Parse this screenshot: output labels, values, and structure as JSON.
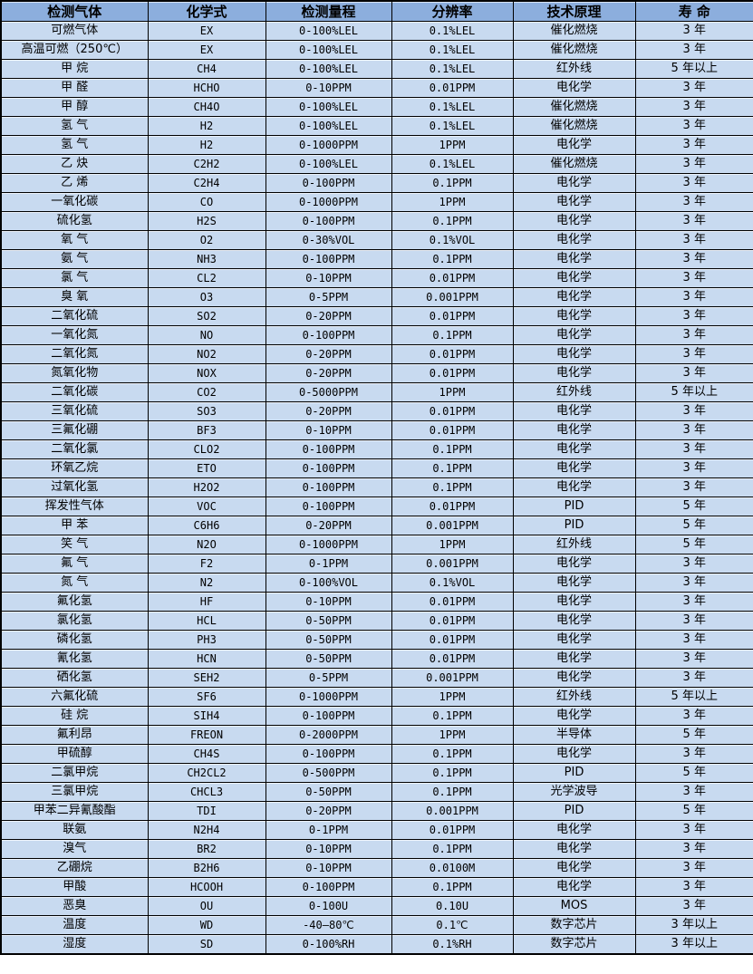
{
  "colors": {
    "header_bg": "#8caedd",
    "row_bg": "#c8daf0",
    "border": "#000000",
    "text": "#000000"
  },
  "chart_data": {
    "type": "table",
    "columns": [
      "检测气体",
      "化学式",
      "检测量程",
      "分辨率",
      "技术原理",
      "寿 命"
    ],
    "rows": [
      [
        "可燃气体",
        "EX",
        "0-100%LEL",
        "0.1%LEL",
        "催化燃烧",
        "3 年"
      ],
      [
        "高温可燃（250℃）",
        "EX",
        "0-100%LEL",
        "0.1%LEL",
        "催化燃烧",
        "3 年"
      ],
      [
        "甲 烷",
        "CH4",
        "0-100%LEL",
        "0.1%LEL",
        "红外线",
        "5 年以上"
      ],
      [
        "甲 醛",
        "HCHO",
        "0-10PPM",
        "0.01PPM",
        "电化学",
        "3 年"
      ],
      [
        "甲 醇",
        "CH4O",
        "0-100%LEL",
        "0.1%LEL",
        "催化燃烧",
        "3 年"
      ],
      [
        "氢 气",
        "H2",
        "0-100%LEL",
        "0.1%LEL",
        "催化燃烧",
        "3 年"
      ],
      [
        "氢 气",
        "H2",
        "0-1000PPM",
        "1PPM",
        "电化学",
        "3 年"
      ],
      [
        "乙 炔",
        "C2H2",
        "0-100%LEL",
        "0.1%LEL",
        "催化燃烧",
        "3 年"
      ],
      [
        "乙 烯",
        "C2H4",
        "0-100PPM",
        "0.1PPM",
        "电化学",
        "3 年"
      ],
      [
        "一氧化碳",
        "CO",
        "0-1000PPM",
        "1PPM",
        "电化学",
        "3 年"
      ],
      [
        "硫化氢",
        "H2S",
        "0-100PPM",
        "0.1PPM",
        "电化学",
        "3 年"
      ],
      [
        "氧 气",
        "O2",
        "0-30%VOL",
        "0.1%VOL",
        "电化学",
        "3 年"
      ],
      [
        "氨 气",
        "NH3",
        "0-100PPM",
        "0.1PPM",
        "电化学",
        "3 年"
      ],
      [
        "氯 气",
        "CL2",
        "0-10PPM",
        "0.01PPM",
        "电化学",
        "3 年"
      ],
      [
        "臭 氧",
        "O3",
        "0-5PPM",
        "0.001PPM",
        "电化学",
        "3 年"
      ],
      [
        "二氧化硫",
        "SO2",
        "0-20PPM",
        "0.01PPM",
        "电化学",
        "3 年"
      ],
      [
        "一氧化氮",
        "NO",
        "0-100PPM",
        "0.1PPM",
        "电化学",
        "3 年"
      ],
      [
        "二氧化氮",
        "NO2",
        "0-20PPM",
        "0.01PPM",
        "电化学",
        "3 年"
      ],
      [
        "氮氧化物",
        "NOX",
        "0-20PPM",
        "0.01PPM",
        "电化学",
        "3 年"
      ],
      [
        "二氧化碳",
        "CO2",
        "0-5000PPM",
        "1PPM",
        "红外线",
        "5 年以上"
      ],
      [
        "三氧化硫",
        "SO3",
        "0-20PPM",
        "0.01PPM",
        "电化学",
        "3 年"
      ],
      [
        "三氟化硼",
        "BF3",
        "0-10PPM",
        "0.01PPM",
        "电化学",
        "3 年"
      ],
      [
        "二氧化氯",
        "CLO2",
        "0-100PPM",
        "0.1PPM",
        "电化学",
        "3 年"
      ],
      [
        "环氧乙烷",
        "ETO",
        "0-100PPM",
        "0.1PPM",
        "电化学",
        "3 年"
      ],
      [
        "过氧化氢",
        "H2O2",
        "0-100PPM",
        "0.1PPM",
        "电化学",
        "3 年"
      ],
      [
        "挥发性气体",
        "VOC",
        "0-100PPM",
        "0.01PPM",
        "PID",
        "5 年"
      ],
      [
        "甲 苯",
        "C6H6",
        "0-20PPM",
        "0.001PPM",
        "PID",
        "5 年"
      ],
      [
        "笑 气",
        "N2O",
        "0-1000PPM",
        "1PPM",
        "红外线",
        "5 年"
      ],
      [
        "氟 气",
        "F2",
        "0-1PPM",
        "0.001PPM",
        "电化学",
        "3 年"
      ],
      [
        "氮 气",
        "N2",
        "0-100%VOL",
        "0.1%VOL",
        "电化学",
        "3 年"
      ],
      [
        "氟化氢",
        "HF",
        "0-10PPM",
        "0.01PPM",
        "电化学",
        "3 年"
      ],
      [
        "氯化氢",
        "HCL",
        "0-50PPM",
        "0.01PPM",
        "电化学",
        "3 年"
      ],
      [
        "磷化氢",
        "PH3",
        "0-50PPM",
        "0.01PPM",
        "电化学",
        "3 年"
      ],
      [
        "氰化氢",
        "HCN",
        "0-50PPM",
        "0.01PPM",
        "电化学",
        "3 年"
      ],
      [
        "硒化氢",
        "SEH2",
        "0-5PPM",
        "0.001PPM",
        "电化学",
        "3 年"
      ],
      [
        "六氟化硫",
        "SF6",
        "0-1000PPM",
        "1PPM",
        "红外线",
        "5 年以上"
      ],
      [
        "硅 烷",
        "SIH4",
        "0-100PPM",
        "0.1PPM",
        "电化学",
        "3 年"
      ],
      [
        "氟利昂",
        "FREON",
        "0-2000PPM",
        "1PPM",
        "半导体",
        "5 年"
      ],
      [
        "甲硫醇",
        "CH4S",
        "0-100PPM",
        "0.1PPM",
        "电化学",
        "3 年"
      ],
      [
        "二氯甲烷",
        "CH2CL2",
        "0-500PPM",
        "0.1PPM",
        "PID",
        "5 年"
      ],
      [
        "三氯甲烷",
        "CHCL3",
        "0-50PPM",
        "0.1PPM",
        "光学波导",
        "3 年"
      ],
      [
        "甲苯二异氰酸酯",
        "TDI",
        "0-20PPM",
        "0.001PPM",
        "PID",
        "5 年"
      ],
      [
        "联氨",
        "N2H4",
        "0-1PPM",
        "0.01PPM",
        "电化学",
        "3 年"
      ],
      [
        "溴气",
        "BR2",
        "0-10PPM",
        "0.1PPM",
        "电化学",
        "3 年"
      ],
      [
        "乙硼烷",
        "B2H6",
        "0-10PPM",
        "0.0100M",
        "电化学",
        "3 年"
      ],
      [
        "甲酸",
        "HCOOH",
        "0-100PPM",
        "0.1PPM",
        "电化学",
        "3 年"
      ],
      [
        "恶臭",
        "OU",
        "0-100U",
        "0.10U",
        "MOS",
        "3 年"
      ],
      [
        "温度",
        "WD",
        "-40—80℃",
        "0.1℃",
        "数字芯片",
        "3 年以上"
      ],
      [
        "湿度",
        "SD",
        "0-100%RH",
        "0.1%RH",
        "数字芯片",
        "3 年以上"
      ]
    ]
  }
}
